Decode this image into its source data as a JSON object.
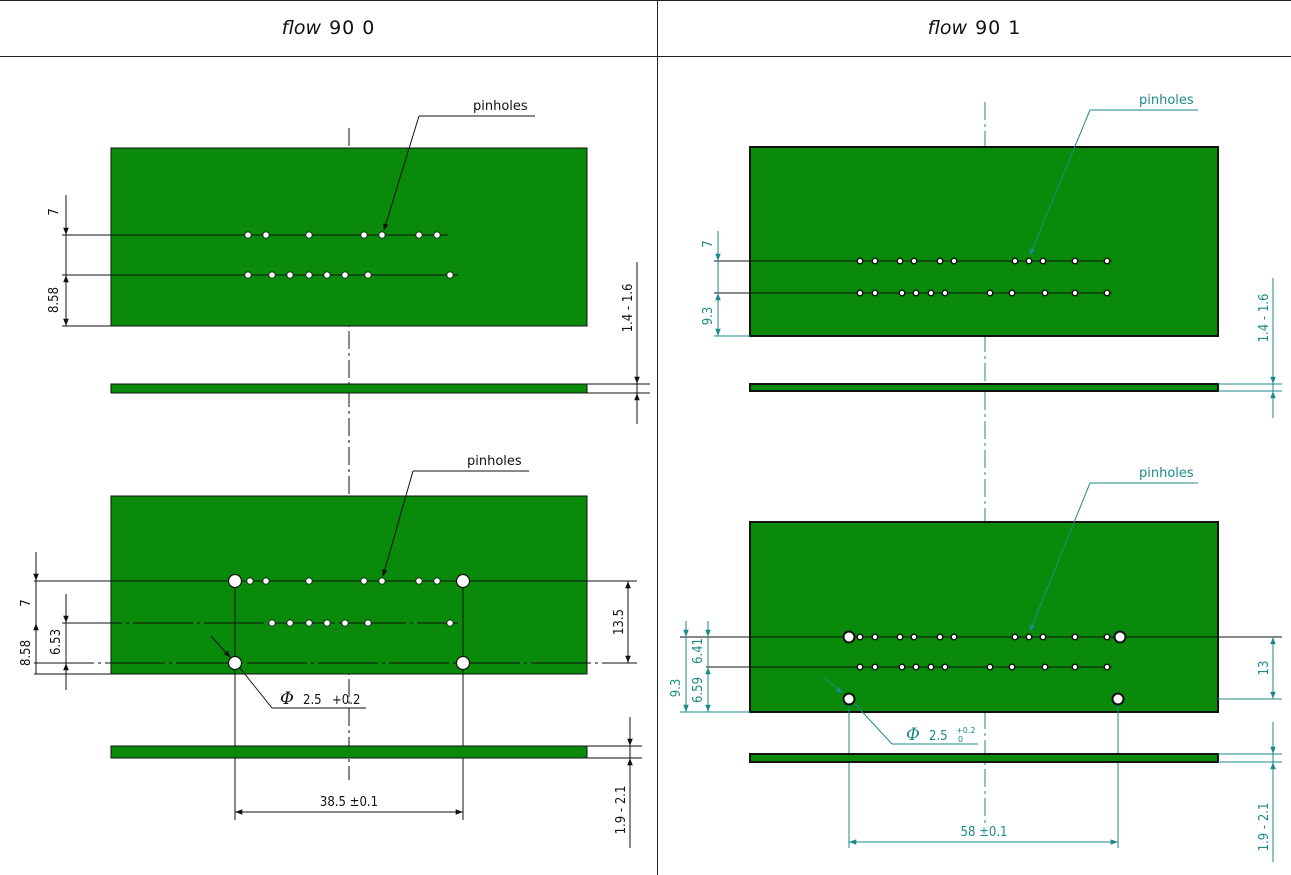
{
  "headers": {
    "left": {
      "italic": "flow",
      "rest": "90 0"
    },
    "right": {
      "italic": "flow",
      "rest": "90 1"
    }
  },
  "left_panel": {
    "upper_view": {
      "callout": "pinholes",
      "dims": {
        "top_row": "7",
        "bottom_row": "8.58",
        "thickness": "1.4 - 1.6"
      }
    },
    "lower_view": {
      "callout": "pinholes",
      "dims": {
        "top_row": "7",
        "bottom_row": "8.58",
        "row_gap": "6.53",
        "hole_span_v": "13.5",
        "hole_dia_sym": "Φ",
        "hole_dia": "2.5",
        "hole_tol": "+0.2",
        "hole_span_h": "38.5 ±0.1",
        "thickness": "1.9 - 2.1"
      }
    }
  },
  "right_panel": {
    "upper_view": {
      "callout": "pinholes",
      "dims": {
        "top_row": "7",
        "bottom_row": "9.3",
        "thickness": "1.4 - 1.6"
      }
    },
    "lower_view": {
      "callout": "pinholes",
      "dims": {
        "top_row": "6.41",
        "bottom_row": "9.3",
        "row_gap": "6.59",
        "hole_span_v": "13",
        "hole_dia_sym": "Φ",
        "hole_dia": "2.5",
        "hole_tol_upper": "+0.2",
        "hole_tol_lower": "0",
        "hole_span_h": "58 ±0.1",
        "thickness": "1.9 - 2.1"
      }
    }
  },
  "colors": {
    "board": "#0a8a0a",
    "line": "#111111",
    "dim_right": "#1c8a8a"
  }
}
